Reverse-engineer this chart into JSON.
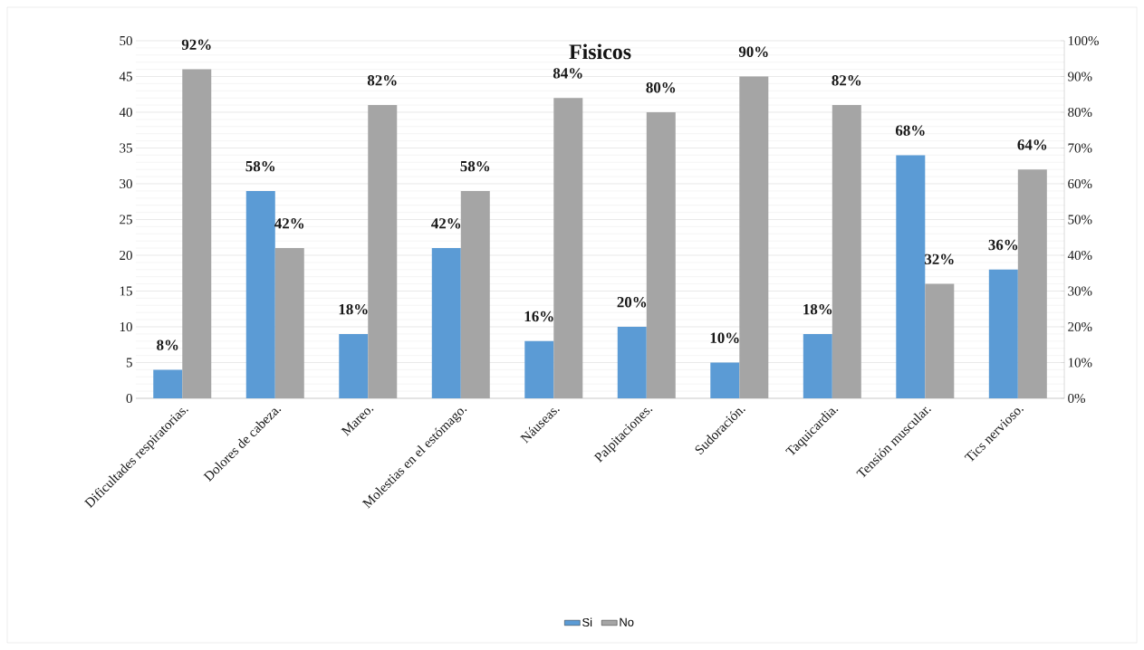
{
  "chart_data": {
    "type": "bar",
    "title": "Fisicos",
    "categories": [
      "Dificultades respiratorias.",
      "Dolores de cabeza.",
      "Mareo.",
      "Molestias en el estómago.",
      "Náuseas.",
      "Palpitaciones.",
      "Sudoración.",
      "Taquicardia.",
      "Tensión muscular.",
      "Tics nervioso."
    ],
    "series": [
      {
        "name": "Si",
        "color": "#5b9bd5",
        "axis": "y2",
        "values": [
          8,
          58,
          18,
          42,
          16,
          20,
          10,
          18,
          68,
          36
        ],
        "value_labels": [
          "8%",
          "58%",
          "18%",
          "42%",
          "16%",
          "20%",
          "10%",
          "18%",
          "68%",
          "36%"
        ]
      },
      {
        "name": "No",
        "color": "#a5a5a5",
        "axis": "y2",
        "values": [
          92,
          42,
          82,
          58,
          84,
          80,
          90,
          82,
          32,
          64
        ],
        "value_labels": [
          "92%",
          "42%",
          "82%",
          "58%",
          "84%",
          "80%",
          "90%",
          "82%",
          "32%",
          "64%"
        ]
      }
    ],
    "ylim": [
      0,
      50
    ],
    "yticks": [
      0,
      5,
      10,
      15,
      20,
      25,
      30,
      35,
      40,
      45,
      50
    ],
    "y2lim": [
      0,
      100
    ],
    "y2ticks": [
      {
        "value": 0,
        "label": "0%"
      },
      {
        "value": 10,
        "label": "10%"
      },
      {
        "value": 20,
        "label": "20%"
      },
      {
        "value": 30,
        "label": "30%"
      },
      {
        "value": 40,
        "label": "40%"
      },
      {
        "value": 50,
        "label": "50%"
      },
      {
        "value": 60,
        "label": "60%"
      },
      {
        "value": 70,
        "label": "70%"
      },
      {
        "value": 80,
        "label": "80%"
      },
      {
        "value": 90,
        "label": "90%"
      },
      {
        "value": 100,
        "label": "100%"
      }
    ],
    "grid": "y",
    "legend": "bottom"
  }
}
